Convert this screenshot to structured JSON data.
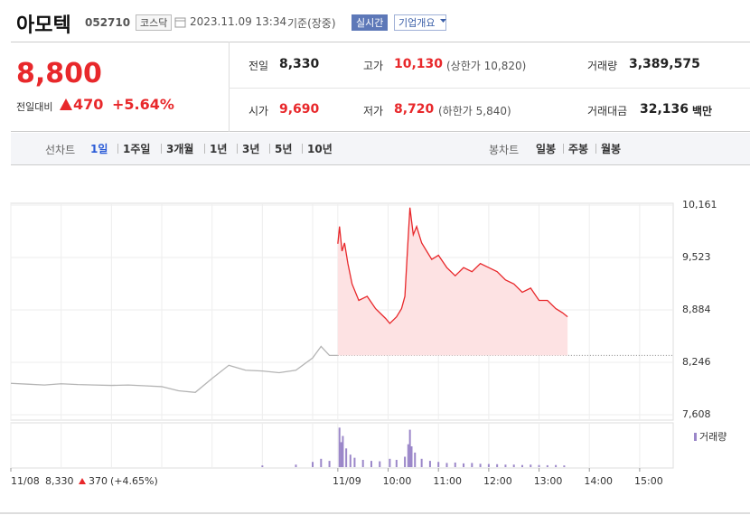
{
  "header": {
    "name": "아모텍",
    "code": "052710",
    "market": "코스닥",
    "datetime": "2023.11.09 13:34",
    "status": "기준(장중)",
    "buttons": [
      "실시간",
      "기업개요"
    ]
  },
  "price": {
    "current": "8,800",
    "change_label": "전일대비",
    "change": "470",
    "change_pct": "+5.64%"
  },
  "stats": [
    [
      {
        "label": "전일",
        "value": "8,330"
      },
      {
        "label": "고가",
        "value": "10,130",
        "extra": "(상한가 10,820)"
      },
      {
        "label": "거래량",
        "value": "3,389,575"
      }
    ],
    [
      {
        "label": "시가",
        "value": "9,690"
      },
      {
        "label": "저가",
        "value": "8,720",
        "extra": "(하한가 5,840)"
      },
      {
        "label": "거래대금",
        "value": "32,136",
        "unit": "백만"
      }
    ]
  ],
  "tabs": {
    "line_label": "선차트",
    "line_tabs": [
      "1일",
      "1주일",
      "3개월",
      "1년",
      "3년",
      "5년",
      "10년"
    ],
    "line_selected_index": 0,
    "candle_label": "봉차트",
    "candle_tabs": [
      "일봉",
      "주봉",
      "월봉"
    ]
  },
  "chart_data": {
    "type": "line",
    "xlim": [
      0,
      790
    ],
    "xticks": [
      {
        "value": 0,
        "label": "11/08"
      },
      {
        "value": 390,
        "label": "11/09"
      },
      {
        "value": 450,
        "label": "10:00"
      },
      {
        "value": 510,
        "label": "11:00"
      },
      {
        "value": 570,
        "label": "12:00"
      },
      {
        "value": 630,
        "label": "13:00"
      },
      {
        "value": 690,
        "label": "14:00"
      },
      {
        "value": 750,
        "label": "15:00"
      }
    ],
    "xgrid": [
      0,
      60,
      120,
      180,
      240,
      300,
      360,
      390,
      450,
      510,
      570,
      630,
      690,
      750
    ],
    "ylim": [
      7608,
      10161
    ],
    "yticks": [
      {
        "value": 10161,
        "label": "10,161"
      },
      {
        "value": 9523,
        "label": "9,523"
      },
      {
        "value": 8884,
        "label": "8,884"
      },
      {
        "value": 8246,
        "label": "8,246"
      },
      {
        "value": 7608,
        "label": "7,608"
      }
    ],
    "grid": true,
    "reference_line": 8330,
    "prev_summary": {
      "close": "8,330",
      "change": "370",
      "pct": "(+4.65%)"
    },
    "series": [
      {
        "color": "#b4b4b4",
        "x": [
          0,
          20,
          40,
          60,
          80,
          100,
          120,
          140,
          160,
          180,
          200,
          220,
          240,
          260,
          280,
          300,
          320,
          340,
          360,
          370,
          380,
          390
        ],
        "values": [
          7990,
          7980,
          7970,
          7985,
          7975,
          7970,
          7965,
          7970,
          7960,
          7950,
          7900,
          7880,
          8050,
          8210,
          8150,
          8140,
          8120,
          8150,
          8300,
          8440,
          8330,
          8330
        ]
      },
      {
        "color": "#e8282b",
        "fill": "#fde2e3",
        "x": [
          390,
          392,
          395,
          398,
          402,
          407,
          415,
          425,
          435,
          440,
          447,
          452,
          460,
          466,
          470,
          473,
          476,
          480,
          484,
          490,
          496,
          502,
          510,
          520,
          530,
          540,
          550,
          560,
          570,
          580,
          590,
          600,
          610,
          620,
          630,
          640,
          650,
          658,
          664
        ],
        "values": [
          9690,
          9900,
          9600,
          9700,
          9450,
          9200,
          9000,
          9050,
          8900,
          8850,
          8780,
          8720,
          8800,
          8900,
          9050,
          9600,
          10130,
          9800,
          9900,
          9700,
          9600,
          9500,
          9550,
          9400,
          9300,
          9400,
          9350,
          9450,
          9400,
          9350,
          9250,
          9200,
          9100,
          9150,
          9000,
          9000,
          8900,
          8850,
          8800
        ]
      }
    ],
    "volume": {
      "label": "거래량",
      "color": "#9b87c9",
      "ylim": [
        0,
        200000
      ],
      "x": [
        300,
        340,
        360,
        370,
        380,
        392,
        394,
        396,
        400,
        405,
        410,
        420,
        430,
        440,
        452,
        460,
        470,
        474,
        476,
        478,
        482,
        490,
        500,
        510,
        520,
        530,
        540,
        550,
        560,
        570,
        580,
        590,
        600,
        610,
        620,
        630,
        640,
        650,
        660
      ],
      "values": [
        8000,
        12000,
        25000,
        40000,
        30000,
        190000,
        120000,
        150000,
        90000,
        60000,
        45000,
        35000,
        30000,
        28000,
        40000,
        35000,
        50000,
        110000,
        180000,
        100000,
        70000,
        40000,
        30000,
        25000,
        20000,
        22000,
        18000,
        20000,
        16000,
        15000,
        14000,
        12000,
        12000,
        10000,
        12000,
        10000,
        9000,
        10000,
        8000
      ]
    }
  }
}
